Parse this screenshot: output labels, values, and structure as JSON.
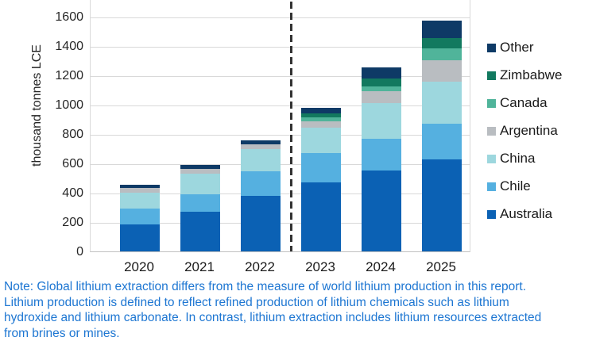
{
  "chart_data": {
    "type": "bar",
    "stacked": true,
    "title": "",
    "xlabel": "",
    "ylabel": "thousand tonnes LCE",
    "categories": [
      "2020",
      "2021",
      "2022",
      "2023",
      "2024",
      "2025"
    ],
    "ylim": [
      0,
      1600
    ],
    "ytick_step": 200,
    "yticks": [
      "0",
      "200",
      "400",
      "600",
      "800",
      "1000",
      "1200",
      "1400",
      "1600"
    ],
    "grid": true,
    "legend_position": "right",
    "legend_order_top_to_bottom": [
      "Other",
      "Zimbabwe",
      "Canada",
      "Argentina",
      "China",
      "Chile",
      "Australia"
    ],
    "forecast_divider": {
      "after_category": "2022",
      "style": "dashed",
      "color": "#333333"
    },
    "series": [
      {
        "name": "Australia",
        "color": "#0b61b4",
        "values": [
          185,
          272,
          380,
          470,
          552,
          629
        ]
      },
      {
        "name": "Chile",
        "color": "#55b0e0",
        "values": [
          105,
          120,
          165,
          200,
          217,
          240
        ]
      },
      {
        "name": "China",
        "color": "#9dd7de",
        "values": [
          110,
          140,
          150,
          172,
          242,
          290
        ]
      },
      {
        "name": "Argentina",
        "color": "#b9bdc1",
        "values": [
          33,
          33,
          37,
          44,
          80,
          145
        ]
      },
      {
        "name": "Canada",
        "color": "#50b49a",
        "values": [
          0,
          0,
          0,
          28,
          36,
          80
        ]
      },
      {
        "name": "Zimbabwe",
        "color": "#12795f",
        "values": [
          0,
          0,
          0,
          25,
          54,
          72
        ]
      },
      {
        "name": "Other",
        "color": "#0e3a66",
        "values": [
          20,
          22,
          25,
          40,
          72,
          118
        ]
      }
    ],
    "totals_estimated": [
      453,
      587,
      757,
      979,
      1253,
      1574
    ]
  },
  "note": {
    "text": "Note: Global lithium extraction differs from the measure of world lithium production in this report. Lithium production is defined to reflect refined production of lithium chemicals such as lithium hydroxide and lithium carbonate. In contrast, lithium extraction includes lithium resources extracted from brines or mines.",
    "color": "#1d76d2"
  }
}
